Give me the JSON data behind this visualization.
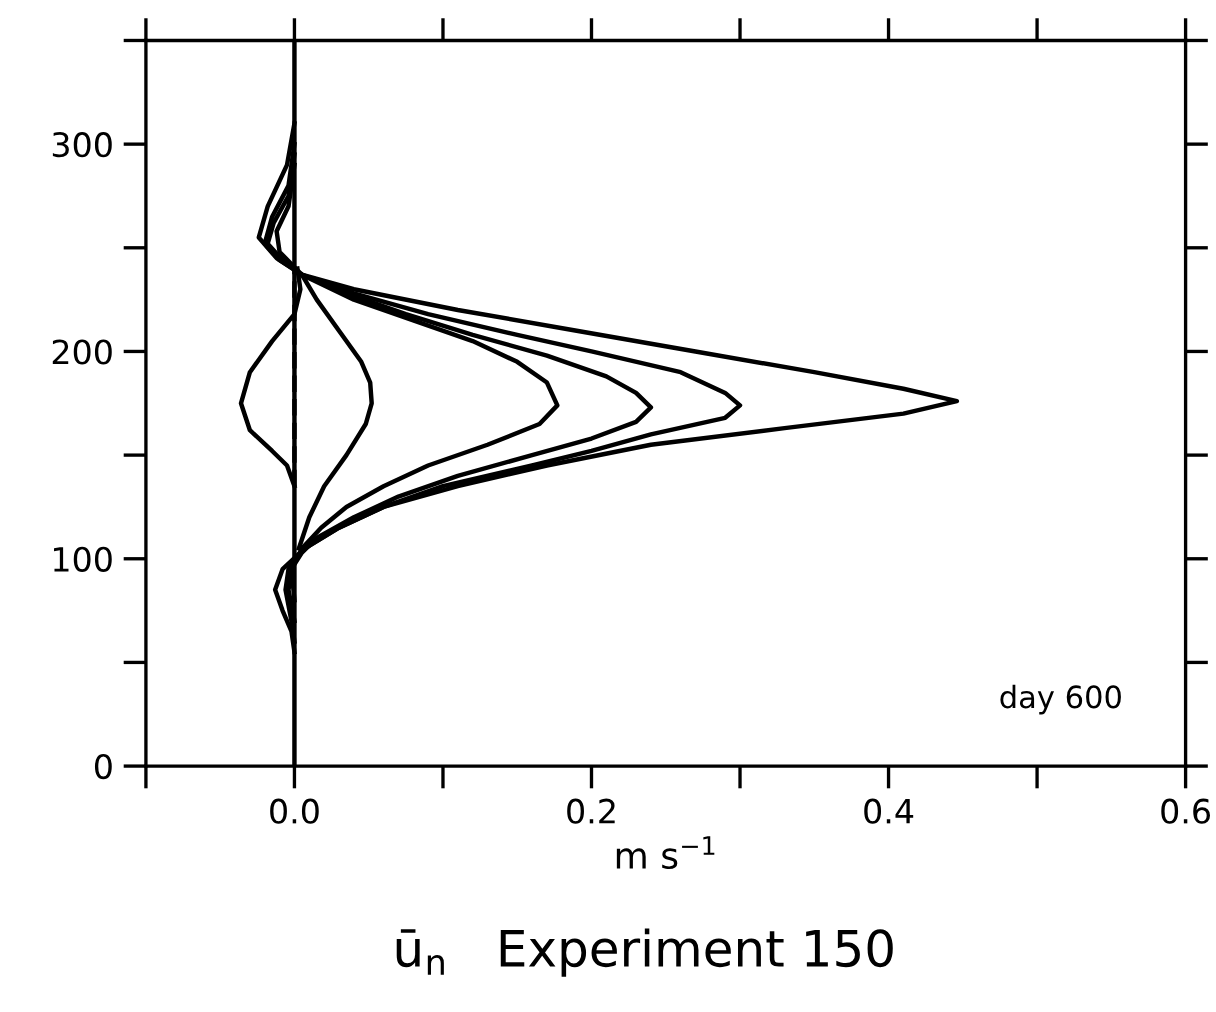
{
  "chart_data": {
    "type": "line",
    "title": "ū$_{n}$   Experiment 150",
    "xlabel": "m s$^{−1}$",
    "annotations": [
      "day 600"
    ],
    "xlim": [
      -0.1,
      0.6
    ],
    "xticks": [
      {
        "value": -0.1,
        "label": null
      },
      {
        "value": 0,
        "label": "0.0"
      },
      {
        "value": 0.1,
        "label": null
      },
      0.2,
      {
        "value": 0.3,
        "label": null
      },
      0.4,
      {
        "value": 0.5,
        "label": null
      },
      0.6
    ],
    "ylim": [
      0,
      350
    ],
    "yticks": [
      0,
      {
        "value": 50,
        "label": null
      },
      100,
      {
        "value": 150,
        "label": null
      },
      200,
      {
        "value": 250,
        "label": null
      },
      300,
      {
        "value": 350,
        "label": null
      }
    ],
    "grid": false,
    "legend": false,
    "marker": "none",
    "line_style": "solid",
    "ref_lines": [
      {
        "axis": "x",
        "value": 0,
        "color": "#000000"
      }
    ],
    "series": [
      {
        "color": "#000000",
        "x": [
          0,
          -0.005,
          -0.018,
          -0.024,
          -0.012,
          0.005,
          0.04,
          0.11,
          0.19,
          0.27,
          0.35,
          0.41,
          0.446,
          0.41,
          0.33,
          0.24,
          0.17,
          0.11,
          0.06,
          0.03,
          0.007,
          -0.008,
          -0.013,
          -0.008,
          -0.002,
          0
        ],
        "values": [
          310,
          290,
          270,
          255,
          245,
          237,
          230,
          220,
          210,
          200,
          190,
          182,
          176,
          170,
          163,
          155,
          145,
          135,
          125,
          115,
          105,
          95,
          85,
          75,
          65,
          55
        ]
      },
      {
        "color": "#000000",
        "x": [
          0,
          -0.004,
          -0.015,
          -0.02,
          -0.01,
          0.005,
          0.04,
          0.09,
          0.15,
          0.2,
          0.26,
          0.29,
          0.3,
          0.29,
          0.24,
          0.2,
          0.16,
          0.1,
          0.06,
          0.03,
          0.007,
          -0.004,
          -0.006,
          -0.002,
          0
        ],
        "values": [
          300,
          280,
          265,
          252,
          244,
          237,
          228,
          218,
          208,
          200,
          190,
          180,
          174,
          168,
          160,
          152,
          145,
          135,
          125,
          115,
          105,
          95,
          85,
          70,
          60
        ]
      },
      {
        "color": "#000000",
        "x": [
          0,
          -0.004,
          -0.014,
          -0.018,
          -0.008,
          0.005,
          0.035,
          0.075,
          0.12,
          0.17,
          0.21,
          0.23,
          0.24,
          0.23,
          0.2,
          0.16,
          0.11,
          0.07,
          0.04,
          0.015,
          0.005,
          -0.002,
          -0.004,
          0
        ],
        "values": [
          295,
          275,
          262,
          252,
          244,
          237,
          228,
          218,
          208,
          198,
          188,
          180,
          173,
          166,
          158,
          150,
          140,
          130,
          120,
          110,
          103,
          95,
          85,
          70
        ]
      },
      {
        "color": "#000000",
        "x": [
          0,
          -0.004,
          -0.012,
          -0.01,
          0.005,
          0.04,
          0.08,
          0.12,
          0.15,
          0.17,
          0.177,
          0.165,
          0.13,
          0.09,
          0.06,
          0.035,
          0.018,
          0.005,
          -0.002,
          0
        ],
        "values": [
          290,
          270,
          258,
          248,
          237,
          225,
          215,
          205,
          195,
          185,
          174,
          165,
          155,
          145,
          135,
          125,
          115,
          105,
          95,
          80
        ]
      },
      {
        "color": "#000000",
        "x": [
          0.005,
          0.015,
          0.03,
          0.045,
          0.051,
          0.052,
          0.048,
          0.035,
          0.02,
          0.01,
          0.003
        ],
        "values": [
          237,
          225,
          210,
          195,
          185,
          175,
          165,
          150,
          135,
          120,
          105
        ]
      },
      {
        "color": "#000000",
        "x": [
          0.002,
          0.004,
          0,
          -0.015,
          -0.03,
          -0.036,
          -0.03,
          -0.015,
          -0.005,
          0
        ],
        "values": [
          240,
          230,
          218,
          205,
          190,
          175,
          162,
          152,
          145,
          135
        ]
      },
      {
        "color": "#000000",
        "line_style": "dashed",
        "x": [
          0,
          0
        ],
        "values": [
          135,
          240
        ]
      }
    ]
  }
}
